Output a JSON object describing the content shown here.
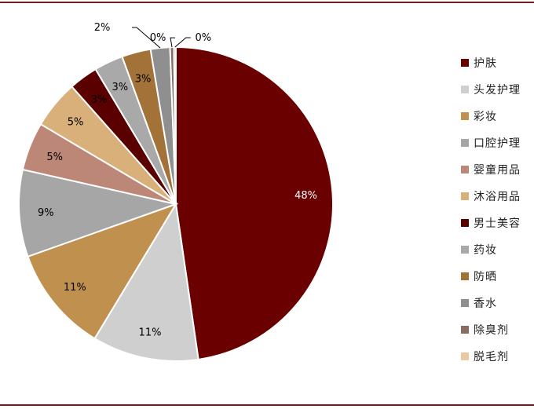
{
  "chart_data": {
    "type": "pie",
    "title": "",
    "categories": [
      "护肤",
      "头发护理",
      "彩妆",
      "口腔护理",
      "婴童用品",
      "沐浴用品",
      "男士美容",
      "药妆",
      "防晒",
      "香水",
      "除臭剂",
      "脱毛剂"
    ],
    "values": [
      48,
      11,
      11,
      9,
      5,
      5,
      3,
      3,
      3,
      2,
      0.4,
      0.2
    ],
    "labels": [
      "48%",
      "11%",
      "11%",
      "9%",
      "5%",
      "5%",
      "3%",
      "3%",
      "3%",
      "2%",
      "0%",
      "0%"
    ],
    "colors": [
      "#6b0000",
      "#cfcfcf",
      "#c0904f",
      "#a6a6a6",
      "#bd8778",
      "#d9b07a",
      "#5a0000",
      "#a9a9a9",
      "#a27238",
      "#8f8f8f",
      "#8a6c60",
      "#e8c9a4"
    ],
    "label_colors": [
      "#ffffff",
      "#000000",
      "#000000",
      "#000000",
      "#000000",
      "#000000",
      "#000000",
      "#000000",
      "#000000",
      "#000000",
      "#000000",
      "#000000"
    ],
    "legend_placement": "right"
  }
}
